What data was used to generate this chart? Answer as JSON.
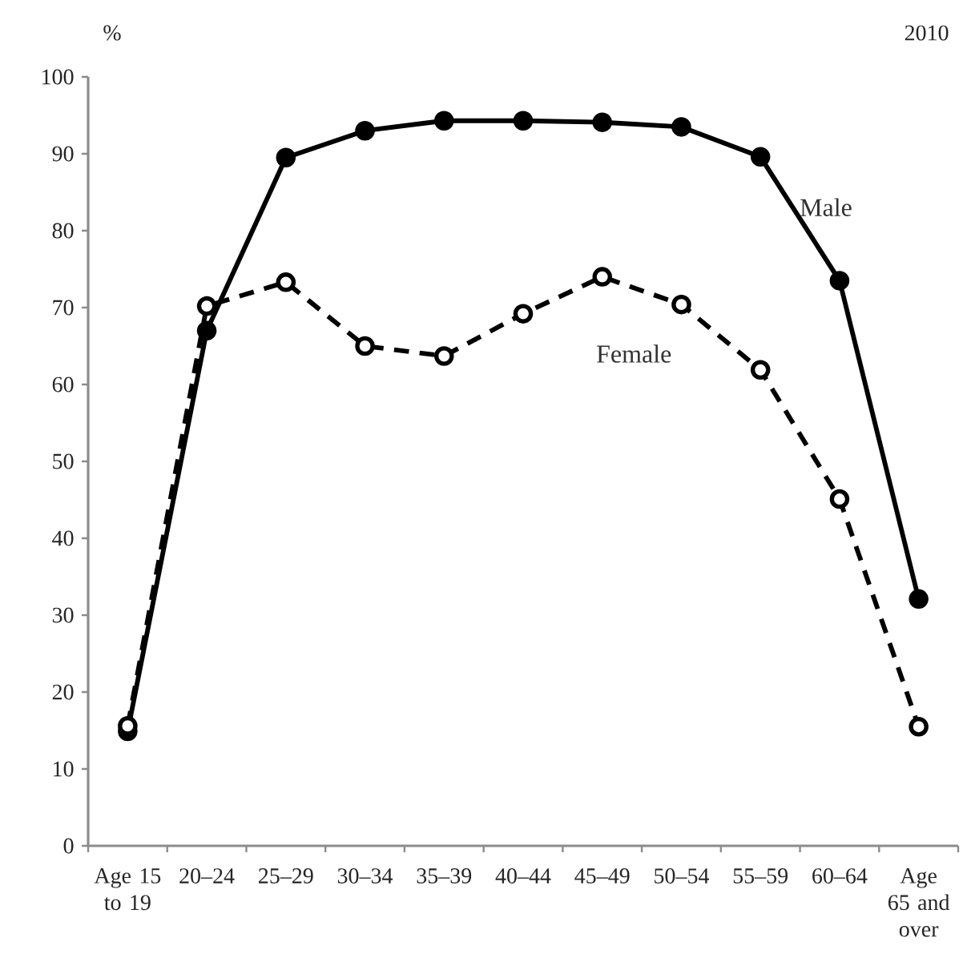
{
  "chart_data": {
    "type": "line",
    "ylabel": "%",
    "annotations": [
      "2010"
    ],
    "categories": [
      "Age 15 to 19",
      "20–24",
      "25–29",
      "30–34",
      "35–39",
      "40–44",
      "45–49",
      "50–54",
      "55–59",
      "60–64",
      "Age 65 and over"
    ],
    "ylim": [
      0,
      100
    ],
    "yticks": [
      0,
      10,
      20,
      30,
      40,
      50,
      60,
      70,
      80,
      90,
      100
    ],
    "grid": false,
    "legend": false,
    "marker": "circle",
    "series": [
      {
        "name": "Male",
        "color": "#000000",
        "line_style": "solid",
        "values": [
          14.9,
          67.0,
          89.5,
          93.0,
          94.3,
          94.3,
          94.1,
          93.5,
          89.6,
          73.5,
          32.1
        ]
      },
      {
        "name": "Female",
        "color": "#000000",
        "line_style": "dashed",
        "values": [
          15.6,
          70.2,
          73.3,
          65.0,
          63.7,
          69.2,
          74.0,
          70.4,
          61.9,
          45.1,
          15.5
        ]
      }
    ]
  }
}
